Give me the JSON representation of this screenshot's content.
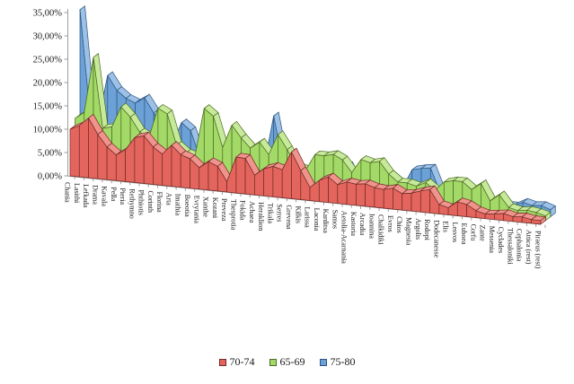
{
  "chart_data": {
    "type": "area",
    "projection": "3d",
    "title": "",
    "xlabel": "",
    "ylabel": "",
    "ylim": [
      0,
      35
    ],
    "y_unit": "percent",
    "grid": false,
    "y_ticks": [
      "35,00%",
      "30,00%",
      "25,00%",
      "20,00%",
      "15,00%",
      "10,00%",
      "5,00%",
      "0,00%"
    ],
    "y_tick_values": [
      35,
      30,
      25,
      20,
      15,
      10,
      5,
      0
    ],
    "legend_position": "bottom",
    "categories": [
      "Chania",
      "Lasithi",
      "Lefkada",
      "Drama",
      "Kavala",
      "Pella",
      "Pieria",
      "Rethymno",
      "Phthiotis",
      "Corinth",
      "Florina",
      "Arta",
      "Imathia",
      "Boeotia",
      "Evrytania",
      "Xanthe",
      "Kozani",
      "Preveza",
      "Thesprotia",
      "Fokida",
      "Achaea",
      "Heraklion",
      "Trikala",
      "Serres",
      "Grevena",
      "Kilkis",
      "Larissa",
      "Laconia",
      "Karditsa",
      "Samos",
      "Aetolia-Acarnania",
      "Kastoria",
      "Arcadia",
      "Ioannina",
      "Chalkidiki",
      "Evros",
      "Chios",
      "Magnesia",
      "Argolis",
      "Rodopi",
      "Dodecanesse",
      "Elis",
      "Lesvos",
      "Euboea",
      "Corfu",
      "Zante",
      "Messenia",
      "Cyclades",
      "Thessaloniki",
      "Cephalonia",
      "Attica (rest)",
      "Piraeus (rest)"
    ],
    "series": [
      {
        "name": "70-74",
        "color": "#E4655D",
        "color_top": "#F0938C",
        "stroke": "#6E2B26",
        "values": [
          10.0,
          11.0,
          12.8,
          9.5,
          7.0,
          5.5,
          6.8,
          9.6,
          10.2,
          8.0,
          6.7,
          8.8,
          7.0,
          6.3,
          4.6,
          6.1,
          5.3,
          2.2,
          7.7,
          7.6,
          4.2,
          5.8,
          6.5,
          6.0,
          10.0,
          6.2,
          2.8,
          4.5,
          5.5,
          4.0,
          4.8,
          4.5,
          4.8,
          4.2,
          4.0,
          4.5,
          3.5,
          3.8,
          4.5,
          5.0,
          2.0,
          1.5,
          3.0,
          2.6,
          1.5,
          1.0,
          1.2,
          1.5,
          1.0,
          1.2,
          0.8,
          0.8
        ]
      },
      {
        "name": "65-69",
        "color": "#A3D966",
        "color_top": "#C6E99A",
        "stroke": "#4C6B23",
        "values": [
          11.5,
          13.0,
          25.0,
          10.0,
          10.5,
          15.0,
          13.0,
          10.0,
          9.0,
          15.5,
          14.5,
          8.0,
          6.5,
          6.0,
          16.5,
          15.0,
          8.5,
          13.5,
          11.0,
          9.0,
          10.5,
          8.0,
          12.5,
          9.5,
          6.0,
          5.5,
          9.0,
          9.0,
          9.5,
          8.5,
          6.0,
          9.0,
          8.5,
          9.0,
          6.5,
          5.0,
          5.0,
          4.5,
          5.5,
          4.0,
          6.0,
          6.5,
          6.5,
          5.0,
          6.5,
          3.0,
          4.5,
          2.0,
          1.5,
          1.8,
          1.5,
          1.0
        ]
      },
      {
        "name": "75-80",
        "color": "#6BA1D6",
        "color_top": "#9CC0E6",
        "stroke": "#2E557F",
        "values": [
          34.0,
          13.5,
          10.5,
          20.5,
          17.5,
          16.0,
          15.2,
          16.5,
          13.5,
          10.0,
          7.0,
          12.0,
          10.5,
          5.0,
          5.5,
          4.5,
          4.5,
          11.0,
          5.0,
          4.0,
          5.0,
          15.5,
          5.5,
          4.5,
          4.0,
          3.5,
          7.5,
          3.5,
          3.0,
          6.5,
          3.0,
          3.5,
          3.0,
          4.0,
          3.5,
          3.0,
          7.0,
          7.5,
          7.8,
          3.0,
          2.5,
          2.0,
          2.5,
          2.0,
          2.0,
          1.5,
          1.5,
          1.5,
          2.5,
          2.0,
          2.2,
          1.5
        ]
      }
    ]
  },
  "axis": {
    "line_color": "#9E9E9E",
    "label_color": "#1A1A1A"
  }
}
